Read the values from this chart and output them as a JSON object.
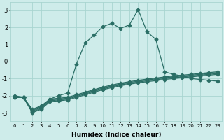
{
  "xlabel": "Humidex (Indice chaleur)",
  "ylabel": "",
  "bg_color": "#ceecea",
  "grid_color": "#a8d5d0",
  "line_color": "#2a6e65",
  "xlim": [
    -0.5,
    23.5
  ],
  "ylim": [
    -3.5,
    3.5
  ],
  "yticks": [
    -3,
    -2,
    -1,
    0,
    1,
    2,
    3
  ],
  "xticks": [
    0,
    1,
    2,
    3,
    4,
    5,
    6,
    7,
    8,
    9,
    10,
    11,
    12,
    13,
    14,
    15,
    16,
    17,
    18,
    19,
    20,
    21,
    22,
    23
  ],
  "main_series": [
    -2.0,
    -2.1,
    -2.8,
    -2.6,
    -2.2,
    -2.0,
    -1.85,
    -0.15,
    1.1,
    1.55,
    2.05,
    2.25,
    1.95,
    2.15,
    3.05,
    1.75,
    1.3,
    -0.6,
    -0.75,
    -0.85,
    -1.0,
    -1.05,
    -1.1,
    -1.15
  ],
  "straight_lines": [
    [
      -2.1,
      -2.1,
      -2.85,
      -2.65,
      -2.2,
      -2.15,
      -2.1,
      -1.95,
      -1.8,
      -1.65,
      -1.5,
      -1.38,
      -1.27,
      -1.18,
      -1.1,
      -1.03,
      -0.97,
      -0.9,
      -0.85,
      -0.8,
      -0.75,
      -0.7,
      -0.65,
      -0.6
    ],
    [
      -2.1,
      -2.1,
      -2.9,
      -2.7,
      -2.25,
      -2.2,
      -2.15,
      -2.0,
      -1.85,
      -1.7,
      -1.55,
      -1.43,
      -1.32,
      -1.23,
      -1.15,
      -1.08,
      -1.02,
      -0.95,
      -0.9,
      -0.85,
      -0.8,
      -0.75,
      -0.7,
      -0.65
    ],
    [
      -2.1,
      -2.1,
      -2.95,
      -2.75,
      -2.3,
      -2.25,
      -2.2,
      -2.05,
      -1.9,
      -1.75,
      -1.6,
      -1.48,
      -1.37,
      -1.28,
      -1.2,
      -1.13,
      -1.07,
      -1.0,
      -0.95,
      -0.9,
      -0.85,
      -0.8,
      -0.75,
      -0.7
    ],
    [
      -2.1,
      -2.1,
      -3.0,
      -2.8,
      -2.35,
      -2.3,
      -2.25,
      -2.1,
      -1.95,
      -1.8,
      -1.65,
      -1.53,
      -1.42,
      -1.33,
      -1.25,
      -1.18,
      -1.12,
      -1.05,
      -1.0,
      -0.95,
      -0.9,
      -0.85,
      -0.8,
      -0.75
    ]
  ],
  "markersize": 2.5,
  "linewidth": 0.9
}
